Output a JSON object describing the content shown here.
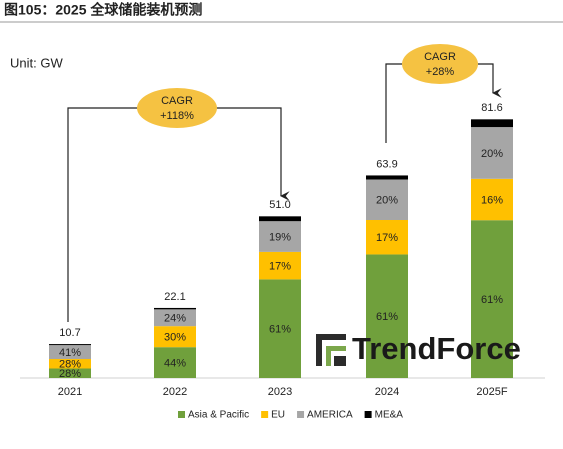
{
  "chart_data": {
    "type": "stacked_share_bar",
    "title": "图105：2025 全球储能装机预测",
    "subtitle": "Unit: GW",
    "watermark": "TrendForce",
    "categories": [
      "2021",
      "2022",
      "2023",
      "2024",
      "2025F"
    ],
    "totals": {
      "values": [
        10.7,
        22.1,
        51.0,
        63.9,
        81.6
      ],
      "value_labels": [
        "10.7",
        "22.1",
        "51.0",
        "63.9",
        "81.6"
      ]
    },
    "series": [
      {
        "name": "Asia & Pacific",
        "color": "#70a03c",
        "values": [
          28,
          44,
          61,
          61,
          61
        ],
        "value_labels": [
          "28%",
          "44%",
          "61%",
          "61%",
          "61%"
        ]
      },
      {
        "name": "EU",
        "color": "#ffc000",
        "values": [
          28,
          30,
          17,
          17,
          16
        ],
        "value_labels": [
          "28%",
          "30%",
          "17%",
          "17%",
          "16%"
        ]
      },
      {
        "name": "AMERICA",
        "color": "#a6a6a6",
        "values": [
          41,
          24,
          19,
          20,
          20
        ],
        "value_labels": [
          "41%",
          "24%",
          "19%",
          "20%",
          "20%"
        ]
      },
      {
        "name": "ME&A",
        "color": "#000000",
        "values": [
          3,
          2,
          3,
          2,
          3
        ]
      }
    ],
    "annotations": [
      {
        "label": "CAGR",
        "value": "+118%"
      },
      {
        "label": "CAGR",
        "value": "+28%"
      }
    ],
    "legend": "bottom"
  }
}
